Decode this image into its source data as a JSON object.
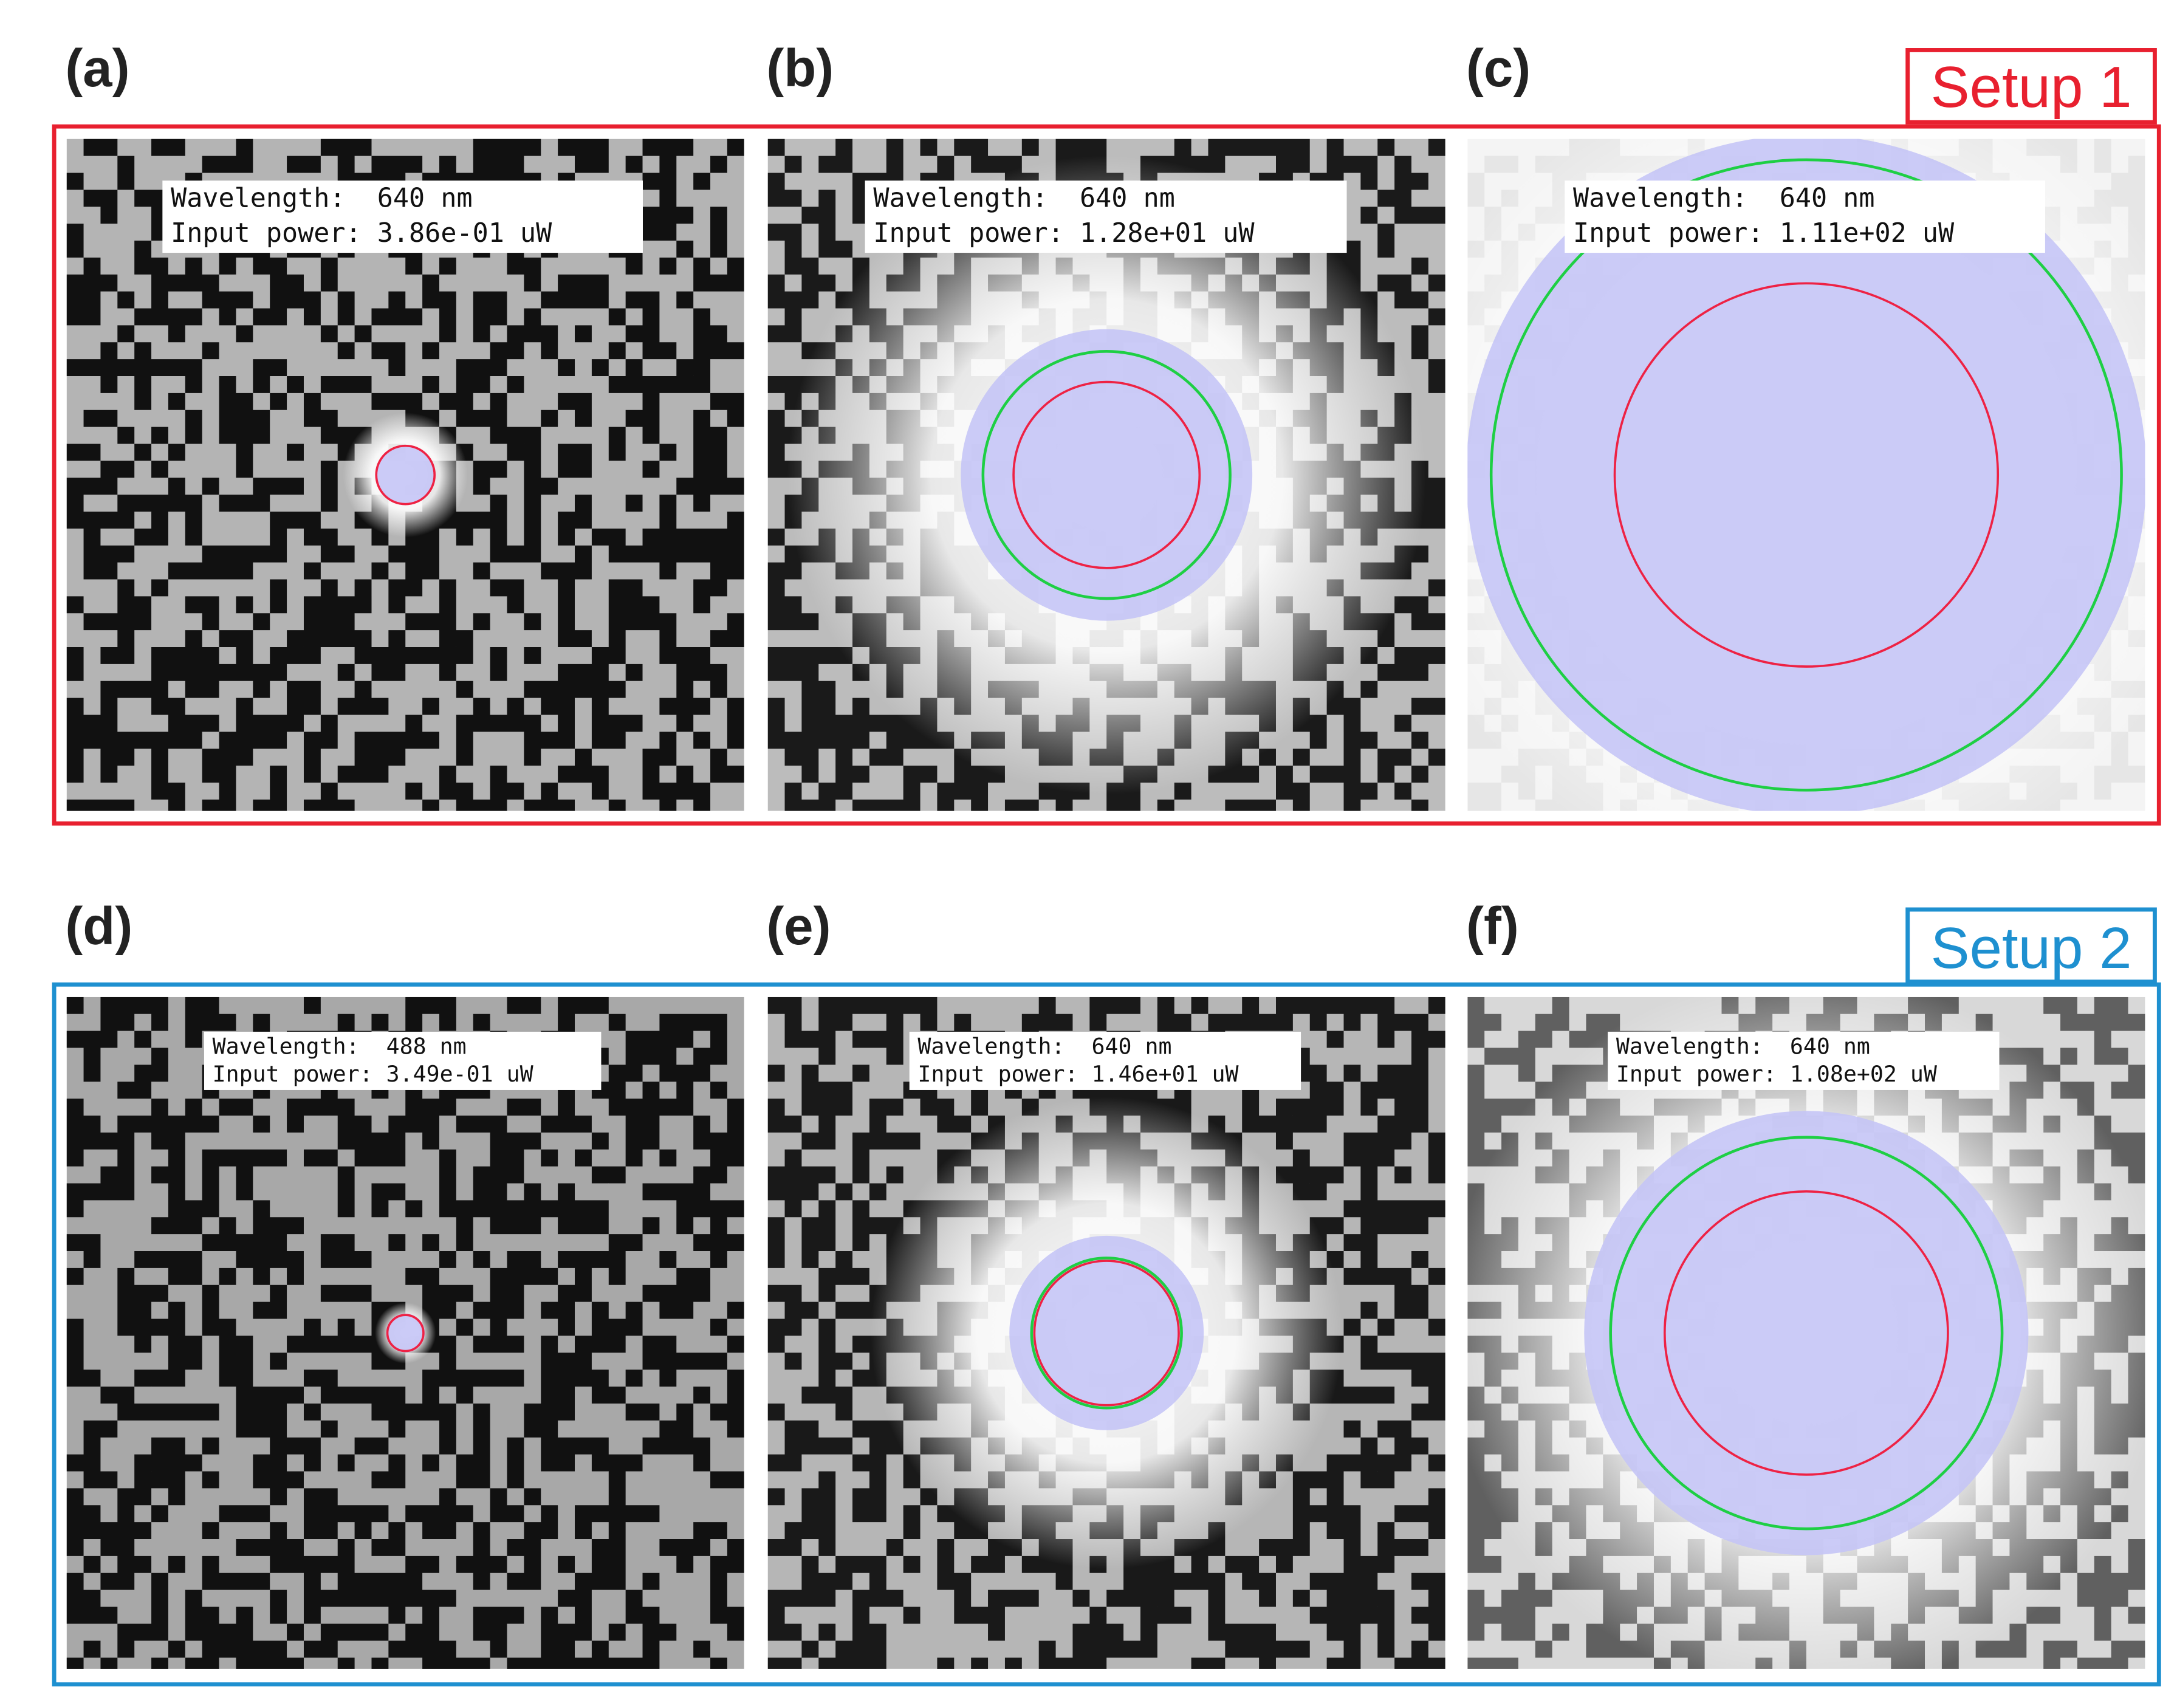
{
  "panels": [
    {
      "label": "(a)",
      "wavelength": "Wavelength:  640 nm",
      "power": "Input power: 3.86e-01 uW"
    },
    {
      "label": "(b)",
      "wavelength": "Wavelength:  640 nm",
      "power": "Input power: 1.28e+01 uW"
    },
    {
      "label": "(c)",
      "wavelength": "Wavelength:  640 nm",
      "power": "Input power: 1.11e+02 uW"
    },
    {
      "label": "(d)",
      "wavelength": "Wavelength:  488 nm",
      "power": "Input power: 3.49e-01 uW"
    },
    {
      "label": "(e)",
      "wavelength": "Wavelength:  640 nm",
      "power": "Input power: 1.46e+01 uW"
    },
    {
      "label": "(f)",
      "wavelength": "Wavelength:  640 nm",
      "power": "Input power: 1.08e+02 uW"
    }
  ],
  "setups": [
    {
      "label": "Setup 1"
    },
    {
      "label": "Setup 2"
    }
  ]
}
